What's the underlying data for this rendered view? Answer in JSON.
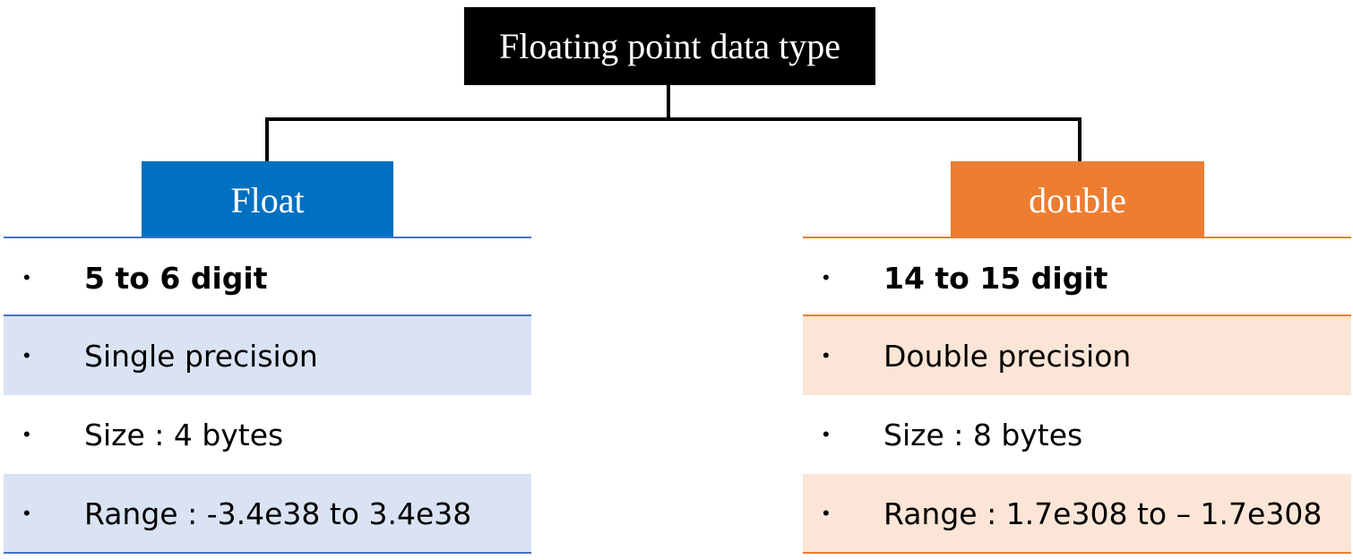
{
  "root": {
    "title": "Floating point data type"
  },
  "colors": {
    "float_accent": "#0070c0",
    "float_line": "#4472c4",
    "float_shade": "#dae3f3",
    "double_accent": "#ed7d31",
    "double_line": "#ed7d31",
    "double_shade": "#fbe5d6"
  },
  "branches": [
    {
      "title": "Float",
      "rows": [
        {
          "bullet": "•",
          "text": "5 to 6 digit"
        },
        {
          "bullet": "•",
          "text": "Single precision"
        },
        {
          "bullet": "•",
          "text": "Size : 4 bytes"
        },
        {
          "bullet": "•",
          "text": "Range : -3.4e38 to 3.4e38"
        }
      ]
    },
    {
      "title": "double",
      "rows": [
        {
          "bullet": "•",
          "text": "14 to 15 digit"
        },
        {
          "bullet": "•",
          "text": "Double precision"
        },
        {
          "bullet": "•",
          "text": "Size : 8 bytes"
        },
        {
          "bullet": "•",
          "text": "Range : 1.7e308 to – 1.7e308"
        }
      ]
    }
  ]
}
